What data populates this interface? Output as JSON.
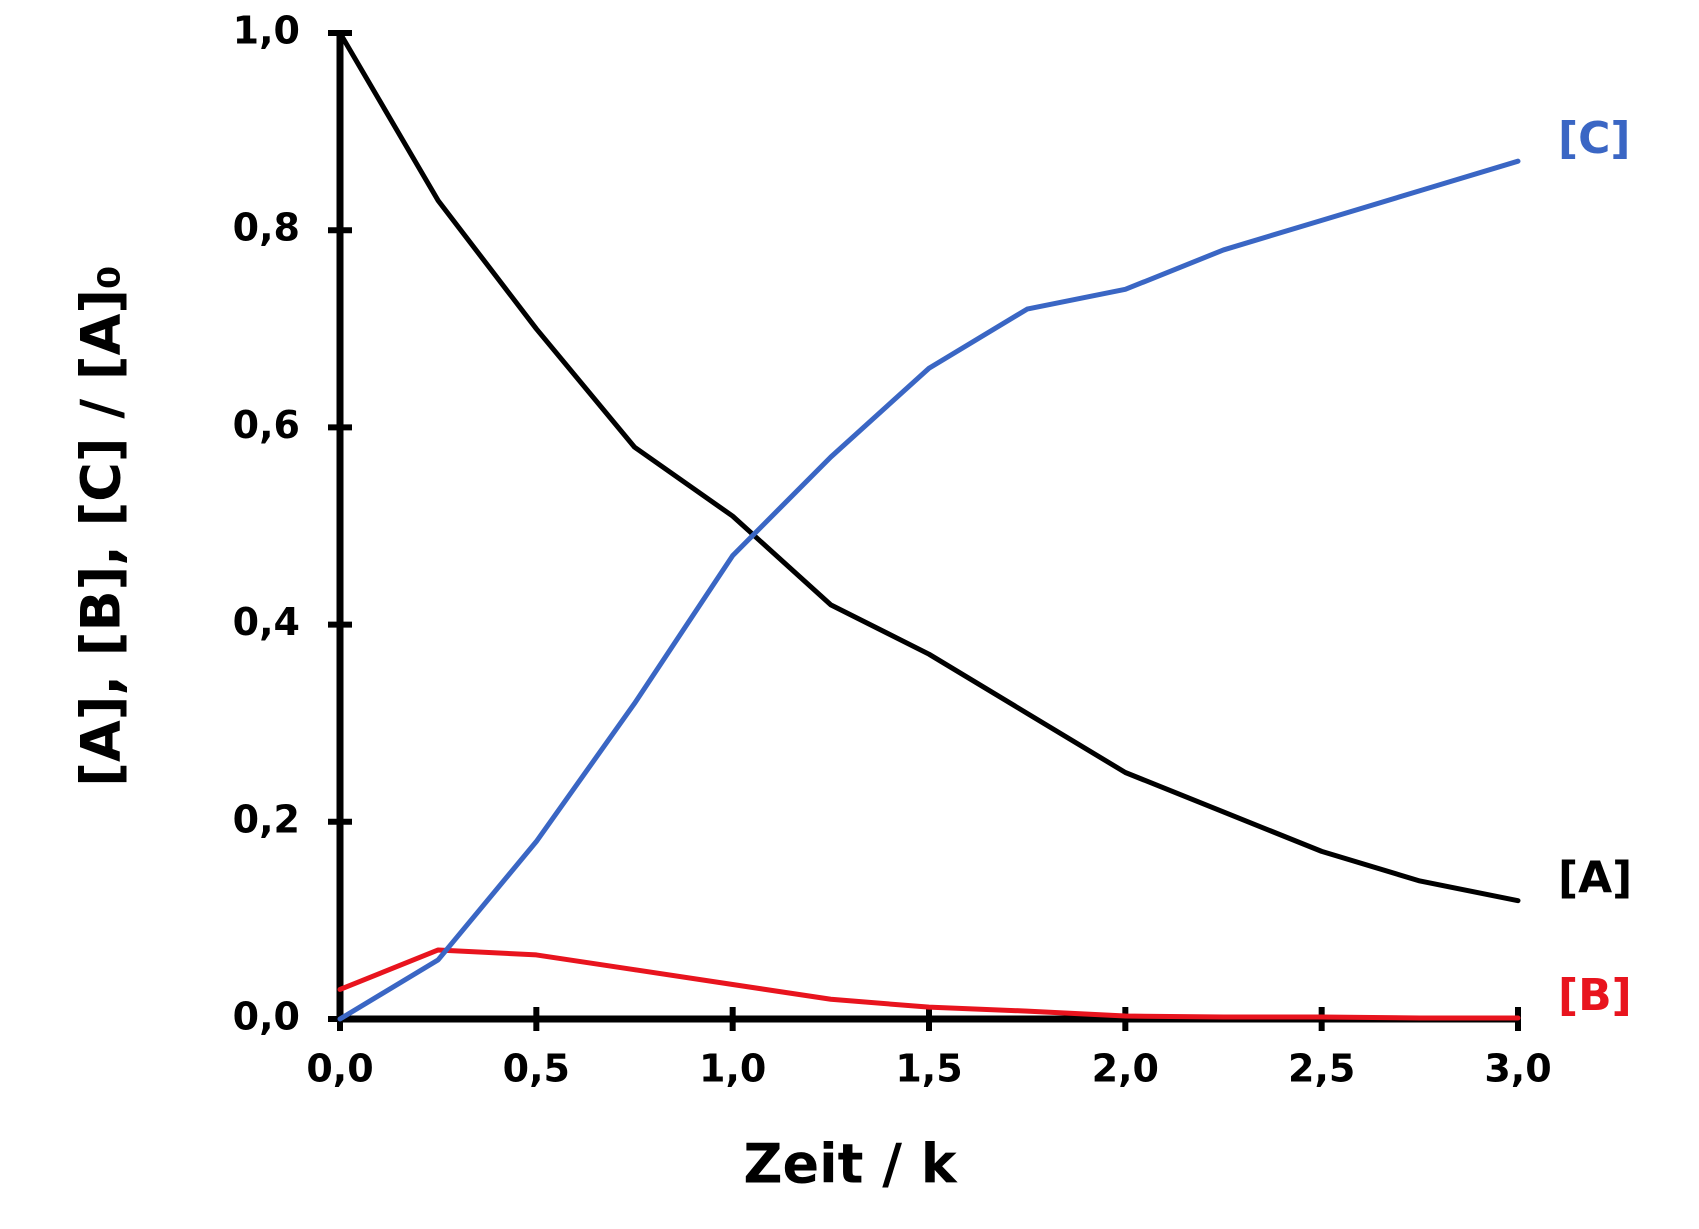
{
  "chart_data": {
    "type": "line",
    "xlabel": "Zeit / k",
    "ylabel": "[A], [B], [C] / [A]₀",
    "x": [
      0,
      0.25,
      0.5,
      0.75,
      1.0,
      1.25,
      1.5,
      1.75,
      2.0,
      2.25,
      2.5,
      2.75,
      3.0
    ],
    "series": [
      {
        "name": "[A]",
        "color": "#000000",
        "values": [
          1.0,
          0.83,
          0.7,
          0.58,
          0.51,
          0.42,
          0.37,
          0.31,
          0.25,
          0.21,
          0.17,
          0.14,
          0.12
        ]
      },
      {
        "name": "[B]",
        "color": "#e8141e",
        "values": [
          0.03,
          0.07,
          0.065,
          0.05,
          0.035,
          0.02,
          0.012,
          0.008,
          0.003,
          0.002,
          0.002,
          0.001,
          0.001
        ]
      },
      {
        "name": "[C]",
        "color": "#3a66c4",
        "values": [
          0,
          0.06,
          0.18,
          0.32,
          0.47,
          0.57,
          0.66,
          0.72,
          0.74,
          0.78,
          0.81,
          0.84,
          0.87
        ]
      }
    ],
    "xlim": [
      0,
      3.0
    ],
    "ylim": [
      0,
      1.0
    ],
    "xticks": [
      {
        "value": 0,
        "label": "0,0"
      },
      {
        "value": 0.5,
        "label": "0,5"
      },
      {
        "value": 1.0,
        "label": "1,0"
      },
      {
        "value": 1.5,
        "label": "1,5"
      },
      {
        "value": 2.0,
        "label": "2,0"
      },
      {
        "value": 2.5,
        "label": "2,5"
      },
      {
        "value": 3.0,
        "label": "3,0"
      }
    ],
    "yticks": [
      {
        "value": 0,
        "label": "0,0"
      },
      {
        "value": 0.2,
        "label": "0,2"
      },
      {
        "value": 0.4,
        "label": "0,4"
      },
      {
        "value": 0.6,
        "label": "0,6"
      },
      {
        "value": 0.8,
        "label": "0,8"
      },
      {
        "value": 1.0,
        "label": "1,0"
      }
    ],
    "grid": false
  }
}
